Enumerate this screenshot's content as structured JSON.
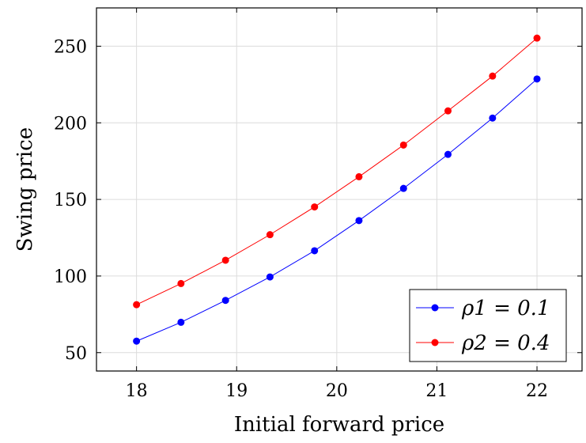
{
  "chart_data": {
    "type": "line",
    "xlabel": "Initial forward price",
    "ylabel": "Swing price",
    "xlim": [
      17.6,
      22.45
    ],
    "ylim": [
      38,
      275
    ],
    "x_ticks": [
      18,
      19,
      20,
      21,
      22
    ],
    "y_ticks": [
      50,
      100,
      150,
      200,
      250
    ],
    "grid": true,
    "legend_position": "bottom-right",
    "x": [
      18.0,
      18.444,
      18.889,
      19.333,
      19.778,
      20.222,
      20.667,
      21.111,
      21.556,
      22.0
    ],
    "series": [
      {
        "name": "ρ1 = 0.1",
        "color": "#0000ff",
        "values": [
          57.5,
          69.8,
          84.1,
          99.4,
          116.5,
          136.2,
          157.2,
          179.4,
          203.1,
          228.6
        ]
      },
      {
        "name": "ρ2 = 0.4",
        "color": "#ff0000",
        "values": [
          81.3,
          95.1,
          110.3,
          127.0,
          145.1,
          164.8,
          185.5,
          207.8,
          230.5,
          255.3
        ]
      }
    ]
  }
}
